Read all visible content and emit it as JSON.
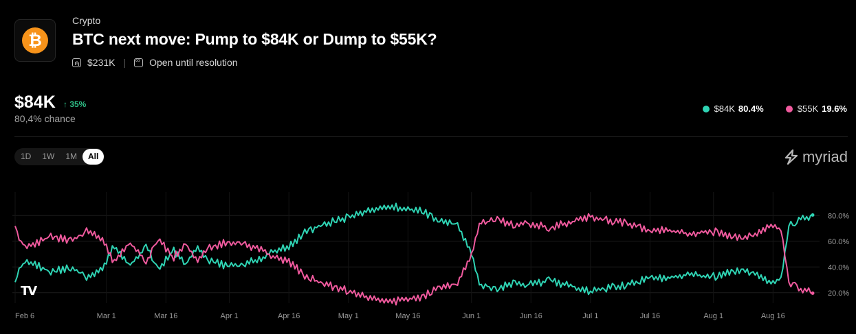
{
  "header": {
    "category": "Crypto",
    "title": "BTC next move: Pump to $84K or Dump to $55K?",
    "volume": "$231K",
    "status": "Open until resolution",
    "logo_symbol": "₿"
  },
  "summary": {
    "price": "$84K",
    "change": "↑ 35%",
    "chance": "80,4% chance"
  },
  "legend": [
    {
      "label": "$84K",
      "value": "80.4%",
      "color": "#2fd4b4"
    },
    {
      "label": "$55K",
      "value": "19.6%",
      "color": "#f05a9e"
    }
  ],
  "range_tabs": [
    "1D",
    "1W",
    "1M",
    "All"
  ],
  "active_tab": "All",
  "brand": {
    "name": "myriad",
    "tv_logo": "TV"
  },
  "chart_data": {
    "type": "line",
    "x_ticks": [
      "Feb 6",
      "Mar 1",
      "Mar 16",
      "Apr 1",
      "Apr 16",
      "May 1",
      "May 16",
      "Jun 1",
      "Jun 16",
      "Jul 1",
      "Jul 16",
      "Aug 1",
      "Aug 16"
    ],
    "y_ticks": [
      "80.0%",
      "60.0%",
      "40.0%",
      "20.0%"
    ],
    "y_tick_values": [
      80,
      60,
      40,
      20
    ],
    "ylim": [
      14,
      94
    ],
    "x_range": [
      "Feb 6",
      "Aug 26"
    ],
    "grid": true,
    "series": [
      {
        "name": "$84K",
        "color": "#2fd4b4",
        "points": [
          [
            "Feb 6",
            28
          ],
          [
            "Feb 7",
            40
          ],
          [
            "Feb 9",
            47
          ],
          [
            "Feb 12",
            42
          ],
          [
            "Feb 15",
            38
          ],
          [
            "Feb 20",
            41
          ],
          [
            "Feb 24",
            34
          ],
          [
            "Feb 28",
            40
          ],
          [
            "Mar 3",
            58
          ],
          [
            "Mar 7",
            42
          ],
          [
            "Mar 11",
            58
          ],
          [
            "Mar 14",
            40
          ],
          [
            "Mar 18",
            54
          ],
          [
            "Mar 21",
            44
          ],
          [
            "Mar 24",
            56
          ],
          [
            "Mar 27",
            46
          ],
          [
            "Apr 1",
            42
          ],
          [
            "Apr 5",
            44
          ],
          [
            "Apr 9",
            48
          ],
          [
            "Apr 13",
            55
          ],
          [
            "Apr 16",
            58
          ],
          [
            "Apr 20",
            68
          ],
          [
            "Apr 25",
            75
          ],
          [
            "May 1",
            80
          ],
          [
            "May 5",
            84
          ],
          [
            "May 10",
            88
          ],
          [
            "May 15",
            88
          ],
          [
            "May 20",
            84
          ],
          [
            "May 24",
            78
          ],
          [
            "May 28",
            76
          ],
          [
            "Jun 1",
            52
          ],
          [
            "Jun 3",
            28
          ],
          [
            "Jun 7",
            25
          ],
          [
            "Jun 12",
            29
          ],
          [
            "Jun 16",
            28
          ],
          [
            "Jun 21",
            31
          ],
          [
            "Jun 26",
            27
          ],
          [
            "Jul 1",
            22
          ],
          [
            "Jul 5",
            25
          ],
          [
            "Jul 10",
            27
          ],
          [
            "Jul 16",
            34
          ],
          [
            "Jul 21",
            33
          ],
          [
            "Jul 26",
            36
          ],
          [
            "Aug 1",
            34
          ],
          [
            "Aug 6",
            38
          ],
          [
            "Aug 11",
            37
          ],
          [
            "Aug 15",
            29
          ],
          [
            "Aug 18",
            32
          ],
          [
            "Aug 19",
            52
          ],
          [
            "Aug 20",
            74
          ],
          [
            "Aug 22",
            77
          ],
          [
            "Aug 24",
            80
          ],
          [
            "Aug 26",
            80.4
          ]
        ]
      },
      {
        "name": "$55K",
        "color": "#f05a9e",
        "points": [
          [
            "Feb 6",
            72
          ],
          [
            "Feb 7",
            60
          ],
          [
            "Feb 9",
            53
          ],
          [
            "Feb 12",
            58
          ],
          [
            "Feb 15",
            62
          ],
          [
            "Feb 20",
            59
          ],
          [
            "Feb 24",
            66
          ],
          [
            "Feb 28",
            60
          ],
          [
            "Mar 3",
            42
          ],
          [
            "Mar 7",
            58
          ],
          [
            "Mar 11",
            42
          ],
          [
            "Mar 14",
            60
          ],
          [
            "Mar 18",
            46
          ],
          [
            "Mar 21",
            56
          ],
          [
            "Mar 24",
            44
          ],
          [
            "Mar 27",
            54
          ],
          [
            "Apr 1",
            58
          ],
          [
            "Apr 5",
            56
          ],
          [
            "Apr 9",
            52
          ],
          [
            "Apr 13",
            45
          ],
          [
            "Apr 16",
            42
          ],
          [
            "Apr 20",
            32
          ],
          [
            "Apr 25",
            25
          ],
          [
            "May 1",
            20
          ],
          [
            "May 5",
            16
          ],
          [
            "May 10",
            12
          ],
          [
            "May 15",
            12
          ],
          [
            "May 20",
            16
          ],
          [
            "May 24",
            22
          ],
          [
            "May 28",
            24
          ],
          [
            "Jun 1",
            48
          ],
          [
            "Jun 3",
            72
          ],
          [
            "Jun 7",
            75
          ],
          [
            "Jun 12",
            71
          ],
          [
            "Jun 16",
            72
          ],
          [
            "Jun 21",
            69
          ],
          [
            "Jun 26",
            73
          ],
          [
            "Jul 1",
            78
          ],
          [
            "Jul 5",
            75
          ],
          [
            "Jul 10",
            73
          ],
          [
            "Jul 16",
            66
          ],
          [
            "Jul 21",
            67
          ],
          [
            "Jul 26",
            64
          ],
          [
            "Aug 1",
            66
          ],
          [
            "Aug 6",
            62
          ],
          [
            "Aug 11",
            63
          ],
          [
            "Aug 15",
            71
          ],
          [
            "Aug 18",
            68
          ],
          [
            "Aug 19",
            48
          ],
          [
            "Aug 20",
            26
          ],
          [
            "Aug 22",
            23
          ],
          [
            "Aug 24",
            20
          ],
          [
            "Aug 26",
            19.6
          ]
        ]
      }
    ]
  }
}
